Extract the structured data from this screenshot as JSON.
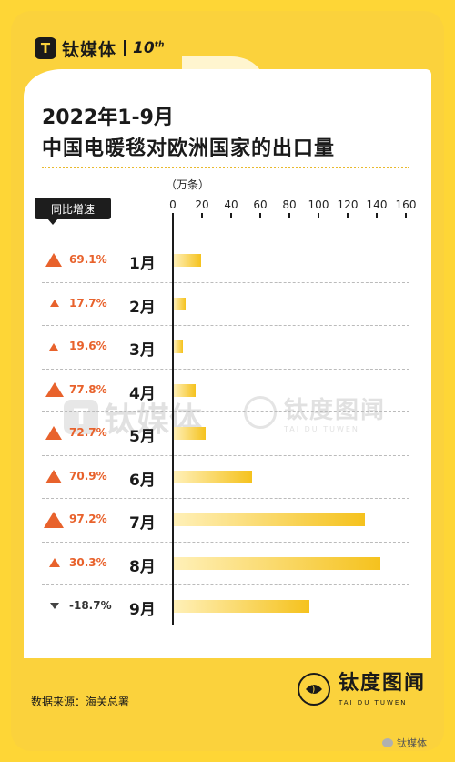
{
  "brand": {
    "logo_glyph": "T",
    "name": "钛媒体",
    "anniversary": "10",
    "anniversary_sup": "th"
  },
  "title_line1": "2022年1-9月",
  "title_line2": "中国电暖毯对欧洲国家的出口量",
  "growth_header": "同比增速",
  "source": "数据来源：海关总署",
  "footer_logo": {
    "name_cn": "钛度图闻",
    "name_en": "TAI DU TUWEN"
  },
  "watermark": {
    "logo_glyph": "T",
    "name": "钛媒体",
    "second_cn": "钛度图闻",
    "second_en": "TAI DU TUWEN"
  },
  "wechat_label": "钛媒体",
  "colors": {
    "background": "#fbd23c",
    "up": "#e8622c",
    "down": "#444444",
    "bar_start": "#fff0b8",
    "bar_end": "#f5c21d"
  },
  "chart_data": {
    "type": "bar",
    "orientation": "horizontal",
    "title": "2022年1-9月 中国电暖毯对欧洲国家的出口量",
    "unit_label": "（万条）",
    "xlim": [
      0,
      160
    ],
    "ticks": [
      0,
      20,
      40,
      60,
      80,
      100,
      120,
      140,
      160
    ],
    "categories": [
      "1月",
      "2月",
      "3月",
      "4月",
      "5月",
      "6月",
      "7月",
      "8月",
      "9月"
    ],
    "values": [
      19,
      8,
      6,
      15,
      22,
      54,
      131,
      142,
      93
    ],
    "growth": [
      {
        "label": "69.1%",
        "direction": "up",
        "value": 69.1
      },
      {
        "label": "17.7%",
        "direction": "up",
        "value": 17.7
      },
      {
        "label": "19.6%",
        "direction": "up",
        "value": 19.6
      },
      {
        "label": "77.8%",
        "direction": "up",
        "value": 77.8
      },
      {
        "label": "72.7%",
        "direction": "up",
        "value": 72.7
      },
      {
        "label": "70.9%",
        "direction": "up",
        "value": 70.9
      },
      {
        "label": "97.2%",
        "direction": "up",
        "value": 97.2
      },
      {
        "label": "30.3%",
        "direction": "up",
        "value": 30.3
      },
      {
        "label": "-18.7%",
        "direction": "down",
        "value": -18.7
      }
    ],
    "grid": false,
    "legend": "none"
  }
}
